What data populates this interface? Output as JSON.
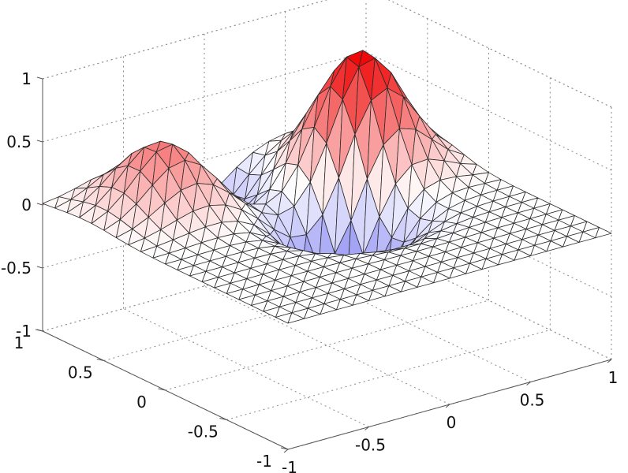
{
  "chart_data": {
    "type": "surface-3d",
    "title": "",
    "xlabel": "",
    "ylabel": "",
    "zlabel": "",
    "xlim": [
      -1,
      1
    ],
    "ylim": [
      -1,
      1
    ],
    "zlim": [
      -1,
      1
    ],
    "x_ticks": [
      "-1",
      "-0.5",
      "0",
      "0.5",
      "1"
    ],
    "y_ticks": [
      "-1",
      "-0.5",
      "0",
      "0.5",
      "1"
    ],
    "z_ticks": [
      "-1",
      "-0.5",
      "0",
      "0.5",
      "1"
    ],
    "grid": true,
    "colormap": [
      "#5555ee",
      "#ffffff",
      "#ee0000"
    ],
    "mesh_color": "#2a2a2a",
    "features": [
      {
        "kind": "peak",
        "x": 0.55,
        "y": 0.45,
        "z": 0.95
      },
      {
        "kind": "peak",
        "x": -0.5,
        "y": 0.65,
        "z": 0.55
      },
      {
        "kind": "trough",
        "x": -0.1,
        "y": 0.85,
        "z": -0.45
      },
      {
        "kind": "trough",
        "x": 0.15,
        "y": 0.05,
        "z": -0.75
      }
    ]
  }
}
